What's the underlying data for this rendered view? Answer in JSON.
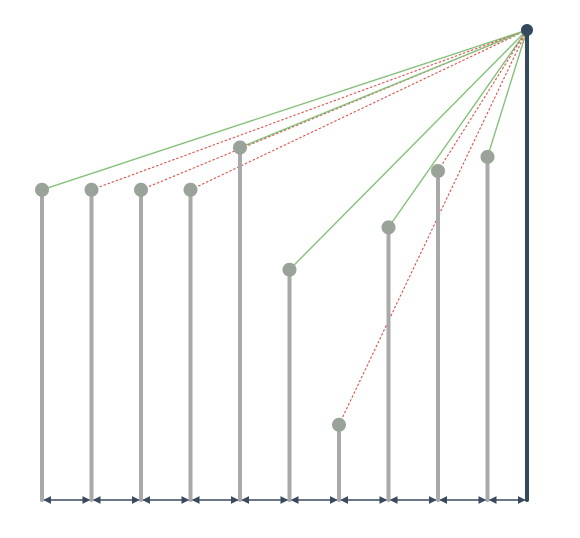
{
  "colors": {
    "background": "#ffffff",
    "stick": "#a9a9a9",
    "stick_node": "#9aa39a",
    "tall_stick": "#34495e",
    "visible_ray": "#86c07a",
    "occluded_ray": "#d9534f",
    "arrow": "#3a4a5e"
  },
  "diagram": {
    "viewer": {
      "label": ""
    },
    "sticks": [
      {
        "id": 1,
        "height_level": 0.66,
        "ray": "visible"
      },
      {
        "id": 2,
        "height_level": 0.66,
        "ray": "occluded"
      },
      {
        "id": 3,
        "height_level": 0.66,
        "ray": "occluded"
      },
      {
        "id": 4,
        "height_level": 0.66,
        "ray": "occluded"
      },
      {
        "id": 5,
        "height_level": 0.75,
        "ray": "visible"
      },
      {
        "id": 6,
        "height_level": 0.49,
        "ray": "visible"
      },
      {
        "id": 7,
        "height_level": 0.16,
        "ray": "occluded"
      },
      {
        "id": 8,
        "height_level": 0.58,
        "ray": "visible"
      },
      {
        "id": 9,
        "height_level": 0.7,
        "ray": "occluded"
      },
      {
        "id": 10,
        "height_level": 0.73,
        "ray": "visible"
      }
    ],
    "tall_stick": {
      "height_level": 1.0
    }
  }
}
